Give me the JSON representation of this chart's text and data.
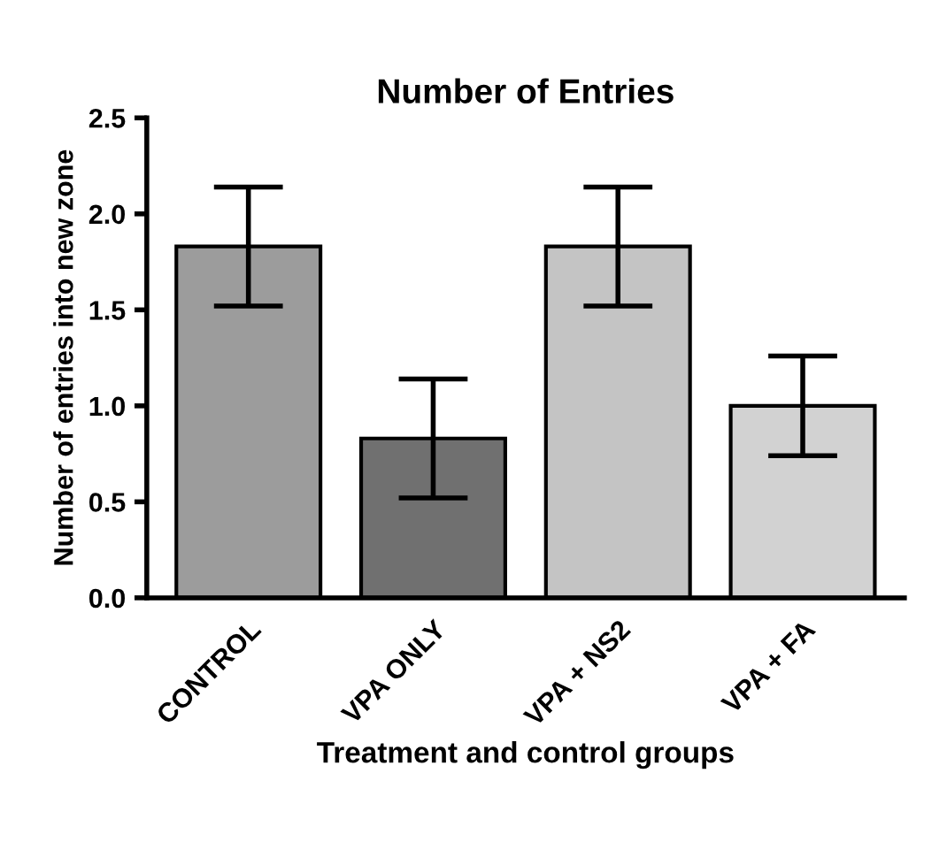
{
  "chart_data": {
    "type": "bar",
    "title": "Number of Entries",
    "xlabel": "Treatment and control groups",
    "ylabel": "Number of entries into new zone",
    "categories": [
      "CONTROL",
      "VPA ONLY",
      "VPA + NS2",
      "VPA + FA"
    ],
    "values": [
      1.83,
      0.83,
      1.83,
      1.0
    ],
    "errors": [
      0.31,
      0.31,
      0.31,
      0.26
    ],
    "colors": [
      "#9c9c9c",
      "#707070",
      "#c4c4c4",
      "#d2d2d2"
    ],
    "ylim": [
      0,
      2.5
    ],
    "yticks": [
      {
        "value": 0,
        "label": "0.0"
      },
      {
        "value": 0.5,
        "label": "0.5"
      },
      {
        "value": 1,
        "label": "1.0"
      },
      {
        "value": 1.5,
        "label": "1.5"
      },
      {
        "value": 2,
        "label": "2.0"
      },
      {
        "value": 2.5,
        "label": "2.5"
      }
    ],
    "grid": false,
    "legend": false
  }
}
